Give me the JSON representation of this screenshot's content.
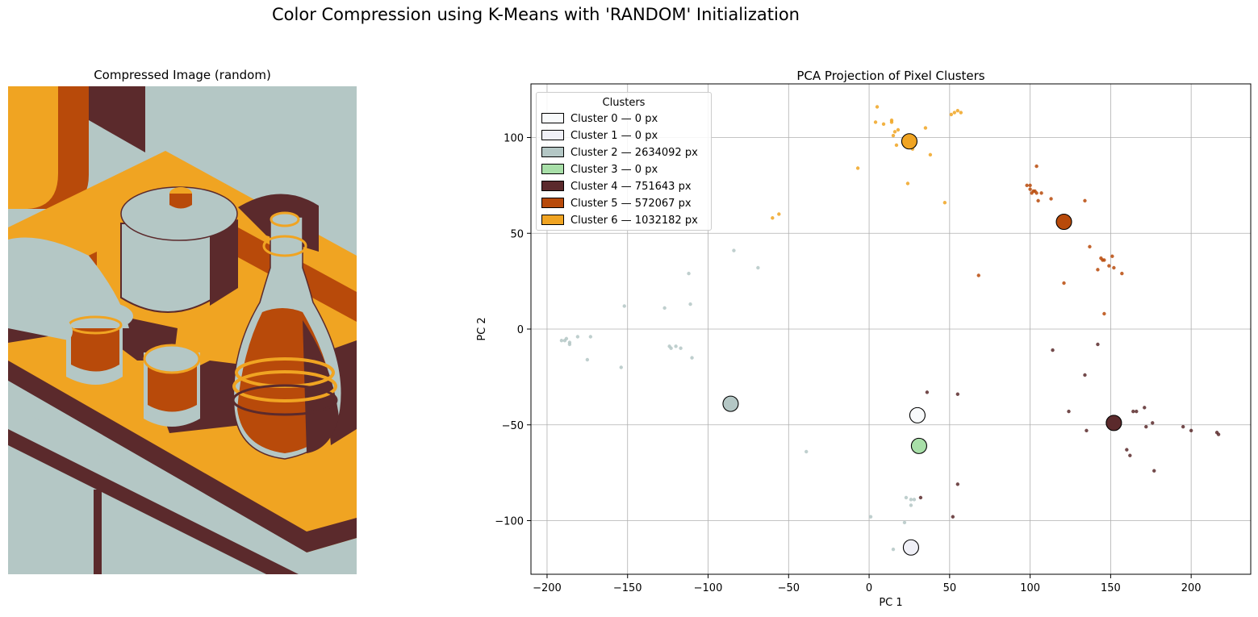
{
  "figure": {
    "suptitle": "Color Compression using K-Means with 'RANDOM' Initialization"
  },
  "image_panel": {
    "title": "Compressed Image (random)"
  },
  "palette": {
    "cluster_0": "#f8fafb",
    "cluster_1": "#f0f0f7",
    "cluster_2": "#b4c7c5",
    "cluster_3": "#a8dfa8",
    "cluster_4": "#5b2a2c",
    "cluster_5": "#b84a0a",
    "cluster_6": "#f0a422"
  },
  "chart_data": {
    "type": "scatter",
    "title": "PCA Projection of Pixel Clusters",
    "xlabel": "PC 1",
    "ylabel": "PC 2",
    "xlim": [
      -210,
      237
    ],
    "ylim": [
      -128,
      128
    ],
    "xticks": [
      -200,
      -150,
      -100,
      -50,
      0,
      50,
      100,
      150,
      200
    ],
    "yticks": [
      -100,
      -50,
      0,
      50,
      100
    ],
    "grid": true,
    "legend": {
      "title": "Clusters",
      "placement": "top-left",
      "entries": [
        {
          "label": "Cluster 0 — 0 px",
          "color": "#f8fafb"
        },
        {
          "label": "Cluster 1 — 0 px",
          "color": "#f0f0f7"
        },
        {
          "label": "Cluster 2 — 2634092 px",
          "color": "#b4c7c5"
        },
        {
          "label": "Cluster 3 — 0 px",
          "color": "#a8dfa8"
        },
        {
          "label": "Cluster 4 — 751643 px",
          "color": "#5b2a2c"
        },
        {
          "label": "Cluster 5 — 572067 px",
          "color": "#b84a0a"
        },
        {
          "label": "Cluster 6 — 1032182 px",
          "color": "#f0a422"
        }
      ]
    },
    "centroids": [
      {
        "cluster": 0,
        "x": 30,
        "y": -45,
        "color": "#f8fafb"
      },
      {
        "cluster": 1,
        "x": 26,
        "y": -114,
        "color": "#f0f0f7"
      },
      {
        "cluster": 2,
        "x": -86,
        "y": -39,
        "color": "#b4c7c5"
      },
      {
        "cluster": 3,
        "x": 31,
        "y": -61,
        "color": "#a8dfa8"
      },
      {
        "cluster": 4,
        "x": 152,
        "y": -49,
        "color": "#5b2a2c"
      },
      {
        "cluster": 5,
        "x": 121,
        "y": 56,
        "color": "#b84a0a"
      },
      {
        "cluster": 6,
        "x": 25,
        "y": 98,
        "color": "#f0a422"
      }
    ],
    "series": [
      {
        "cluster": 6,
        "color": "#f0a422",
        "points": [
          [
            5,
            116
          ],
          [
            4,
            108
          ],
          [
            9,
            107
          ],
          [
            14,
            109
          ],
          [
            14,
            108
          ],
          [
            18,
            104
          ],
          [
            16,
            103
          ],
          [
            15,
            101
          ],
          [
            17,
            96
          ],
          [
            27,
            98
          ],
          [
            27,
            94
          ],
          [
            35,
            105
          ],
          [
            38,
            91
          ],
          [
            51,
            112
          ],
          [
            53,
            113
          ],
          [
            55,
            114
          ],
          [
            57,
            113
          ],
          [
            -7,
            84
          ],
          [
            24,
            76
          ],
          [
            -60,
            58
          ],
          [
            -56,
            60
          ],
          [
            47,
            66
          ]
        ]
      },
      {
        "cluster": 5,
        "color": "#b84a0a",
        "points": [
          [
            98,
            75
          ],
          [
            100,
            75
          ],
          [
            100,
            73
          ],
          [
            101,
            71
          ],
          [
            102,
            72
          ],
          [
            103,
            72
          ],
          [
            104,
            71
          ],
          [
            104,
            85
          ],
          [
            105,
            67
          ],
          [
            107,
            71
          ],
          [
            113,
            68
          ],
          [
            134,
            67
          ],
          [
            137,
            43
          ],
          [
            144,
            37
          ],
          [
            145,
            36
          ],
          [
            146,
            36
          ],
          [
            151,
            38
          ],
          [
            149,
            33
          ],
          [
            152,
            32
          ],
          [
            142,
            31
          ],
          [
            157,
            29
          ],
          [
            68,
            28
          ],
          [
            121,
            24
          ],
          [
            146,
            8
          ]
        ]
      },
      {
        "cluster": 4,
        "color": "#5b2a2c",
        "points": [
          [
            114,
            -11
          ],
          [
            142,
            -8
          ],
          [
            134,
            -24
          ],
          [
            36,
            -33
          ],
          [
            55,
            -34
          ],
          [
            124,
            -43
          ],
          [
            135,
            -53
          ],
          [
            164,
            -43
          ],
          [
            166,
            -43
          ],
          [
            171,
            -41
          ],
          [
            176,
            -49
          ],
          [
            172,
            -51
          ],
          [
            195,
            -51
          ],
          [
            200,
            -53
          ],
          [
            216,
            -54
          ],
          [
            217,
            -55
          ],
          [
            160,
            -63
          ],
          [
            162,
            -66
          ],
          [
            177,
            -74
          ],
          [
            55,
            -81
          ],
          [
            32,
            -88
          ],
          [
            52,
            -98
          ]
        ]
      },
      {
        "cluster": 2,
        "color": "#b4c7c5",
        "points": [
          [
            -191,
            -6
          ],
          [
            -189,
            -6
          ],
          [
            -188,
            -5
          ],
          [
            -186,
            -7
          ],
          [
            -186,
            -8
          ],
          [
            -181,
            -4
          ],
          [
            -173,
            -4
          ],
          [
            -175,
            -16
          ],
          [
            -124,
            -9
          ],
          [
            -123,
            -10
          ],
          [
            -120,
            -9
          ],
          [
            -117,
            -10
          ],
          [
            -110,
            -15
          ],
          [
            -112,
            29
          ],
          [
            -111,
            13
          ],
          [
            -127,
            11
          ],
          [
            -152,
            12
          ],
          [
            -154,
            -20
          ],
          [
            -84,
            41
          ],
          [
            -69,
            32
          ],
          [
            -39,
            -64
          ],
          [
            1,
            -98
          ],
          [
            23,
            -88
          ],
          [
            26,
            -89
          ],
          [
            28,
            -89
          ],
          [
            26,
            -92
          ],
          [
            22,
            -101
          ],
          [
            15,
            -115
          ]
        ]
      }
    ]
  }
}
